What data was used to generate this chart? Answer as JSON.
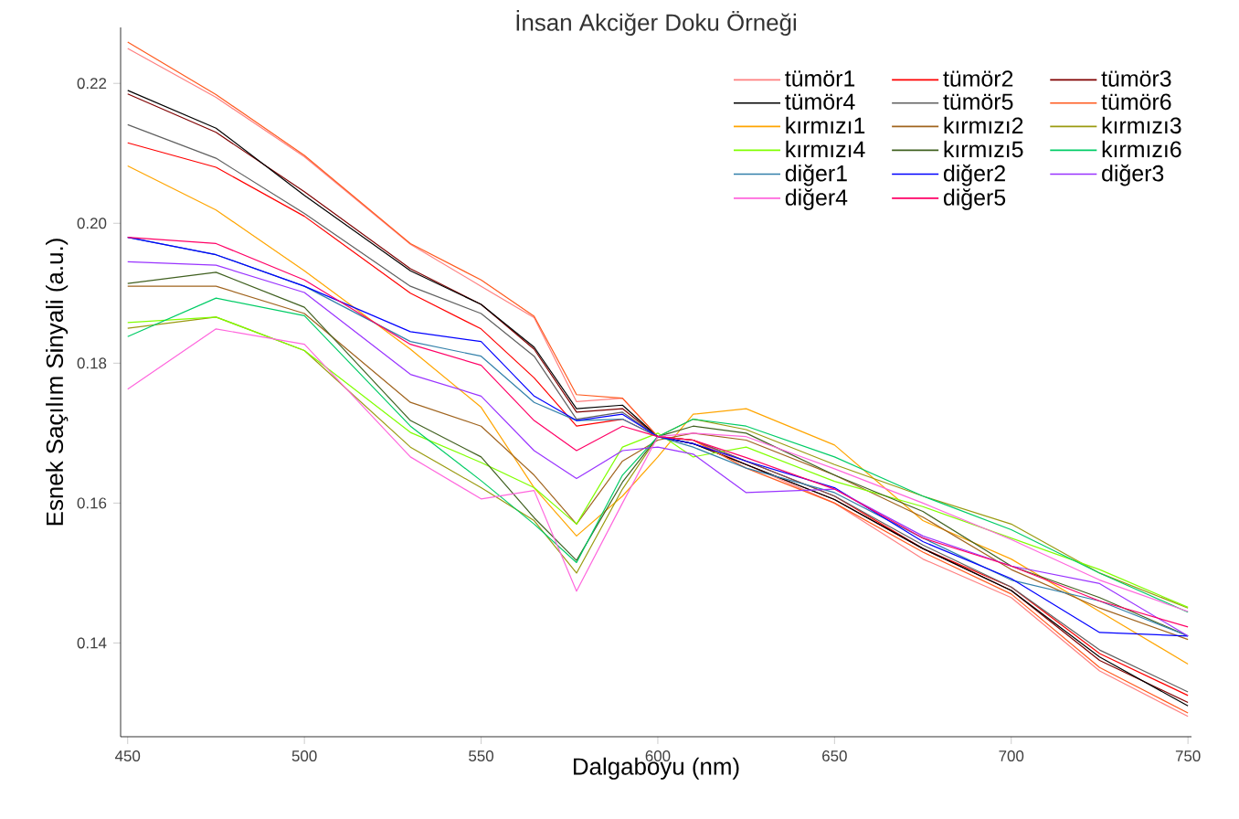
{
  "chart_data": {
    "type": "line",
    "title": "İnsan Akciğer Doku Örneği",
    "xlabel": "Dalgaboyu (nm)",
    "ylabel": "Esnek Saçılım Sinyali (a.u.)",
    "x": [
      450,
      475,
      500,
      530,
      550,
      565,
      577,
      590,
      600,
      610,
      625,
      650,
      675,
      700,
      725,
      750
    ],
    "xlim": [
      448,
      751
    ],
    "ylim": [
      0.1266,
      0.228
    ],
    "xticks": [
      450,
      500,
      550,
      600,
      650,
      700,
      750
    ],
    "yticks": [
      0.14,
      0.16,
      0.18,
      {
        "value": 0.2,
        "label": "0.20"
      },
      0.22
    ],
    "legend": "top right",
    "grid": false,
    "series": [
      {
        "name": "tümör1",
        "color": "#ff8080",
        "values": [
          0.225,
          0.218,
          0.2095,
          0.197,
          0.191,
          0.1865,
          0.1745,
          0.175,
          0.1695,
          0.169,
          0.1655,
          0.16,
          0.152,
          0.1465,
          0.136,
          0.1295
        ]
      },
      {
        "name": "tümör2",
        "color": "#ff0000",
        "values": [
          0.2115,
          0.208,
          0.201,
          0.19,
          0.1849,
          0.1779,
          0.171,
          0.172,
          0.1695,
          0.169,
          0.166,
          0.161,
          0.1535,
          0.148,
          0.1385,
          0.1325
        ]
      },
      {
        "name": "tümör3",
        "color": "#800000",
        "values": [
          0.2185,
          0.213,
          0.2045,
          0.1935,
          0.1884,
          0.182,
          0.173,
          0.1735,
          0.1695,
          0.1685,
          0.1655,
          0.1605,
          0.1535,
          0.1475,
          0.1375,
          0.1315
        ]
      },
      {
        "name": "tümör4",
        "color": "#000000",
        "values": [
          0.219,
          0.2136,
          0.204,
          0.1932,
          0.1884,
          0.1823,
          0.1735,
          0.174,
          0.1695,
          0.1685,
          0.1655,
          0.1605,
          0.1535,
          0.1475,
          0.138,
          0.131
        ]
      },
      {
        "name": "tümör5",
        "color": "#606060",
        "values": [
          0.2141,
          0.2093,
          0.2014,
          0.191,
          0.1871,
          0.181,
          0.172,
          0.173,
          0.1695,
          0.169,
          0.166,
          0.161,
          0.154,
          0.148,
          0.139,
          0.133
        ]
      },
      {
        "name": "tümör6",
        "color": "#ff5a1e",
        "values": [
          0.2259,
          0.2184,
          0.2097,
          0.1971,
          0.1919,
          0.1867,
          0.1755,
          0.175,
          0.1695,
          0.169,
          0.165,
          0.16,
          0.153,
          0.147,
          0.1365,
          0.13
        ]
      },
      {
        "name": "kırmızı1",
        "color": "#ffa500",
        "values": [
          0.2082,
          0.2019,
          0.1932,
          0.182,
          0.1737,
          0.1622,
          0.1553,
          0.161,
          0.1666,
          0.1727,
          0.1735,
          0.1683,
          0.1575,
          0.152,
          0.1445,
          0.137
        ]
      },
      {
        "name": "kırmızı2",
        "color": "#a0641e",
        "values": [
          0.191,
          0.191,
          0.1871,
          0.1744,
          0.171,
          0.164,
          0.157,
          0.166,
          0.169,
          0.17,
          0.169,
          0.164,
          0.158,
          0.1505,
          0.145,
          0.1405
        ]
      },
      {
        "name": "kırmızı3",
        "color": "#9a9a10",
        "values": [
          0.185,
          0.1866,
          0.1818,
          0.168,
          0.1622,
          0.1575,
          0.15,
          0.162,
          0.1695,
          0.172,
          0.1705,
          0.1655,
          0.161,
          0.157,
          0.15,
          0.145
        ]
      },
      {
        "name": "kırmızı4",
        "color": "#80ff00",
        "values": [
          0.1858,
          0.1866,
          0.1818,
          0.1701,
          0.1658,
          0.1622,
          0.157,
          0.168,
          0.17,
          0.1666,
          0.168,
          0.1631,
          0.1595,
          0.155,
          0.1505,
          0.1451
        ]
      },
      {
        "name": "kırmızı5",
        "color": "#406020",
        "values": [
          0.1914,
          0.193,
          0.188,
          0.1718,
          0.1666,
          0.1579,
          0.1518,
          0.163,
          0.1695,
          0.171,
          0.17,
          0.164,
          0.1588,
          0.151,
          0.1465,
          0.141
        ]
      },
      {
        "name": "kırmızı6",
        "color": "#00cc66",
        "values": [
          0.1838,
          0.1893,
          0.1868,
          0.171,
          0.1632,
          0.157,
          0.1515,
          0.164,
          0.1695,
          0.172,
          0.171,
          0.1666,
          0.161,
          0.1562,
          0.15,
          0.1444
        ]
      },
      {
        "name": "diğer1",
        "color": "#3380aa",
        "values": [
          0.198,
          0.1955,
          0.191,
          0.1831,
          0.181,
          0.1744,
          0.1718,
          0.172,
          0.1695,
          0.168,
          0.165,
          0.1615,
          0.155,
          0.149,
          0.146,
          0.141
        ]
      },
      {
        "name": "diğer2",
        "color": "#0000ff",
        "values": [
          0.198,
          0.1955,
          0.191,
          0.1845,
          0.1831,
          0.1753,
          0.1718,
          0.1727,
          0.1695,
          0.1685,
          0.166,
          0.1622,
          0.1545,
          0.1492,
          0.1415,
          0.141
        ]
      },
      {
        "name": "diğer3",
        "color": "#9933ff",
        "values": [
          0.1945,
          0.194,
          0.1901,
          0.1784,
          0.1753,
          0.1675,
          0.1635,
          0.1675,
          0.168,
          0.167,
          0.1615,
          0.162,
          0.1553,
          0.151,
          0.1485,
          0.141
        ]
      },
      {
        "name": "diğer4",
        "color": "#ff66dd",
        "values": [
          0.1763,
          0.1849,
          0.1827,
          0.1666,
          0.1606,
          0.1618,
          0.1474,
          0.16,
          0.1695,
          0.17,
          0.1695,
          0.1649,
          0.16,
          0.1548,
          0.149,
          0.1445
        ]
      },
      {
        "name": "diğer5",
        "color": "#ff0066",
        "values": [
          0.198,
          0.1971,
          0.1919,
          0.1827,
          0.1797,
          0.1718,
          0.1675,
          0.171,
          0.1695,
          0.169,
          0.1665,
          0.162,
          0.155,
          0.151,
          0.146,
          0.1423
        ]
      }
    ]
  }
}
